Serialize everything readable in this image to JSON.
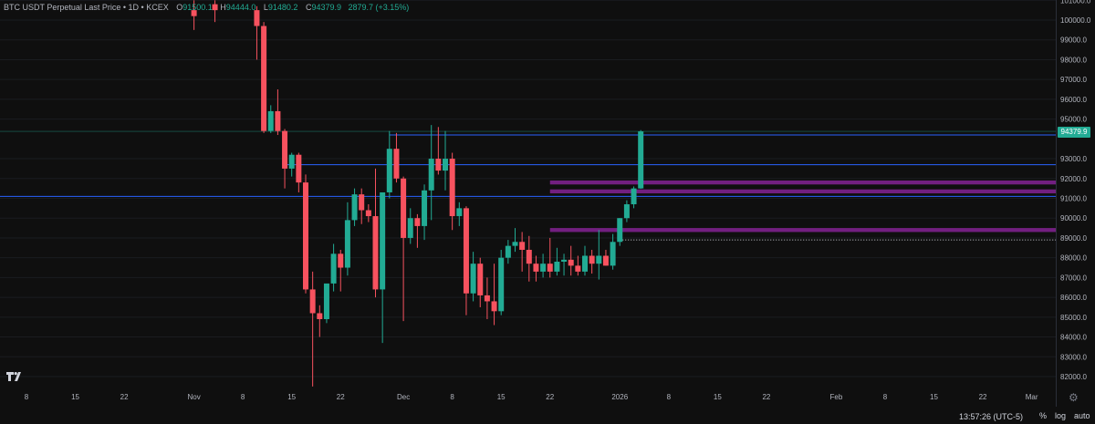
{
  "header": {
    "symbol": "BTC USDT Perpetual Last Price • 1D • KCEX",
    "o_label": "O",
    "o_value": "91500.1",
    "h_label": "H",
    "h_value": "94444.0",
    "l_label": "L",
    "l_value": "91480.2",
    "c_label": "C",
    "c_value": "94379.9",
    "change": "2879.7 (+3.15%)"
  },
  "last_price_tag": "94379.9",
  "footer": {
    "clock": "13:57:26 (UTC-5)",
    "percent_label": "%",
    "log_label": "log",
    "auto_label": "auto"
  },
  "colors": {
    "background": "#0f0f0f",
    "up": "#22ab94",
    "down": "#f7525f",
    "level_line": "#2962ff",
    "zone": "#9c27b0",
    "grid": "#1a1c20",
    "text": "#b2b5be"
  },
  "chart_data": {
    "type": "candlestick",
    "title": "BTC USDT Perpetual Last Price • 1D • KCEX",
    "y_axis": {
      "range": [
        81500,
        100500
      ],
      "ticks": [
        "101000.0",
        "100000.0",
        "99000.0",
        "98000.0",
        "97000.0",
        "96000.0",
        "95000.0",
        "93000.0",
        "92000.0",
        "91000.0",
        "90000.0",
        "89000.0",
        "88000.0",
        "87000.0",
        "86000.0",
        "85000.0",
        "84000.0",
        "83000.0",
        "82000.0"
      ]
    },
    "x_axis": {
      "ticks": [
        "8",
        "15",
        "22",
        "Nov",
        "8",
        "15",
        "22",
        "Dec",
        "8",
        "15",
        "22",
        "2026",
        "8",
        "15",
        "22",
        "Feb",
        "8",
        "15",
        "22",
        "Mar"
      ]
    },
    "candles": [
      {
        "date": "2025-11-01",
        "o": 100500,
        "h": 101000,
        "l": 99500,
        "c": 100200
      },
      {
        "date": "2025-11-04",
        "o": 100800,
        "h": 101000,
        "l": 99900,
        "c": 100500
      },
      {
        "date": "2025-11-10",
        "o": 100500,
        "h": 100700,
        "l": 98000,
        "c": 99700
      },
      {
        "date": "2025-11-11",
        "o": 99700,
        "h": 99900,
        "l": 94300,
        "c": 94400
      },
      {
        "date": "2025-11-12",
        "o": 94400,
        "h": 95700,
        "l": 94300,
        "c": 95400
      },
      {
        "date": "2025-11-13",
        "o": 95400,
        "h": 96500,
        "l": 94200,
        "c": 94400
      },
      {
        "date": "2025-11-14",
        "o": 94400,
        "h": 94500,
        "l": 91500,
        "c": 92500
      },
      {
        "date": "2025-11-15",
        "o": 92500,
        "h": 93300,
        "l": 92100,
        "c": 93200
      },
      {
        "date": "2025-11-16",
        "o": 93200,
        "h": 93300,
        "l": 91300,
        "c": 91800
      },
      {
        "date": "2025-11-17",
        "o": 91800,
        "h": 92200,
        "l": 86200,
        "c": 86400
      },
      {
        "date": "2025-11-18",
        "o": 86400,
        "h": 87300,
        "l": 81500,
        "c": 85200
      },
      {
        "date": "2025-11-19",
        "o": 85200,
        "h": 85600,
        "l": 84000,
        "c": 84900
      },
      {
        "date": "2025-11-20",
        "o": 84900,
        "h": 86600,
        "l": 84700,
        "c": 86700
      },
      {
        "date": "2025-11-21",
        "o": 86700,
        "h": 88700,
        "l": 86300,
        "c": 88200
      },
      {
        "date": "2025-11-22",
        "o": 88200,
        "h": 88400,
        "l": 86300,
        "c": 87500
      },
      {
        "date": "2025-11-23",
        "o": 87500,
        "h": 90800,
        "l": 87100,
        "c": 89900
      },
      {
        "date": "2025-11-24",
        "o": 89900,
        "h": 91500,
        "l": 89600,
        "c": 91200
      },
      {
        "date": "2025-11-25",
        "o": 91200,
        "h": 91500,
        "l": 89700,
        "c": 90400
      },
      {
        "date": "2025-11-26",
        "o": 90400,
        "h": 90700,
        "l": 89800,
        "c": 90100
      },
      {
        "date": "2025-11-27",
        "o": 90100,
        "h": 92500,
        "l": 86000,
        "c": 86400
      },
      {
        "date": "2025-11-28",
        "o": 86400,
        "h": 91300,
        "l": 83700,
        "c": 91300
      },
      {
        "date": "2025-11-29",
        "o": 91300,
        "h": 94400,
        "l": 91000,
        "c": 93500
      },
      {
        "date": "2025-11-30",
        "o": 93500,
        "h": 94300,
        "l": 91800,
        "c": 92000
      },
      {
        "date": "2025-12-01",
        "o": 92000,
        "h": 92100,
        "l": 84800,
        "c": 89000
      },
      {
        "date": "2025-12-02",
        "o": 89000,
        "h": 90500,
        "l": 88700,
        "c": 90000
      },
      {
        "date": "2025-12-03",
        "o": 90000,
        "h": 90200,
        "l": 88500,
        "c": 89600
      },
      {
        "date": "2025-12-04",
        "o": 89600,
        "h": 91700,
        "l": 88900,
        "c": 91400
      },
      {
        "date": "2025-12-05",
        "o": 91400,
        "h": 94700,
        "l": 89900,
        "c": 93000
      },
      {
        "date": "2025-12-06",
        "o": 93000,
        "h": 94600,
        "l": 92200,
        "c": 92400
      },
      {
        "date": "2025-12-07",
        "o": 92400,
        "h": 94400,
        "l": 91400,
        "c": 93000
      },
      {
        "date": "2025-12-08",
        "o": 93000,
        "h": 93300,
        "l": 89400,
        "c": 90100
      },
      {
        "date": "2025-12-09",
        "o": 90100,
        "h": 90800,
        "l": 89600,
        "c": 90500
      },
      {
        "date": "2025-12-10",
        "o": 90500,
        "h": 90600,
        "l": 85100,
        "c": 86200
      },
      {
        "date": "2025-12-11",
        "o": 86200,
        "h": 88300,
        "l": 85800,
        "c": 87700
      },
      {
        "date": "2025-12-12",
        "o": 87700,
        "h": 88000,
        "l": 85500,
        "c": 86100
      },
      {
        "date": "2025-12-13",
        "o": 86100,
        "h": 87000,
        "l": 84900,
        "c": 85800
      },
      {
        "date": "2025-12-14",
        "o": 85800,
        "h": 87700,
        "l": 84600,
        "c": 85300
      },
      {
        "date": "2025-12-15",
        "o": 85300,
        "h": 88400,
        "l": 85100,
        "c": 88000
      },
      {
        "date": "2025-12-16",
        "o": 88000,
        "h": 88900,
        "l": 87700,
        "c": 88600
      },
      {
        "date": "2025-12-17",
        "o": 88600,
        "h": 89500,
        "l": 88300,
        "c": 88800
      },
      {
        "date": "2025-12-18",
        "o": 88800,
        "h": 89300,
        "l": 87300,
        "c": 88400
      },
      {
        "date": "2025-12-19",
        "o": 88400,
        "h": 89100,
        "l": 86800,
        "c": 87700
      },
      {
        "date": "2025-12-20",
        "o": 87700,
        "h": 88100,
        "l": 86800,
        "c": 87300
      },
      {
        "date": "2025-12-21",
        "o": 87300,
        "h": 88200,
        "l": 87000,
        "c": 87700
      },
      {
        "date": "2025-12-22",
        "o": 87700,
        "h": 89000,
        "l": 87000,
        "c": 87300
      },
      {
        "date": "2025-12-23",
        "o": 87300,
        "h": 88500,
        "l": 87100,
        "c": 87800
      },
      {
        "date": "2025-12-24",
        "o": 87800,
        "h": 88200,
        "l": 87100,
        "c": 87900
      },
      {
        "date": "2025-12-25",
        "o": 87900,
        "h": 88600,
        "l": 87100,
        "c": 87600
      },
      {
        "date": "2025-12-26",
        "o": 87600,
        "h": 88100,
        "l": 87100,
        "c": 87300
      },
      {
        "date": "2025-12-27",
        "o": 87300,
        "h": 88600,
        "l": 87100,
        "c": 88100
      },
      {
        "date": "2025-12-28",
        "o": 88100,
        "h": 88400,
        "l": 87200,
        "c": 87700
      },
      {
        "date": "2025-12-29",
        "o": 87700,
        "h": 89400,
        "l": 86900,
        "c": 88100
      },
      {
        "date": "2025-12-30",
        "o": 88100,
        "h": 88400,
        "l": 87600,
        "c": 87600
      },
      {
        "date": "2025-12-31",
        "o": 87600,
        "h": 89200,
        "l": 87400,
        "c": 88800
      },
      {
        "date": "2026-01-01",
        "o": 88800,
        "h": 90000,
        "l": 88600,
        "c": 90000
      },
      {
        "date": "2026-01-02",
        "o": 90000,
        "h": 90900,
        "l": 89800,
        "c": 90700
      },
      {
        "date": "2026-01-03",
        "o": 90700,
        "h": 91600,
        "l": 90500,
        "c": 91500
      },
      {
        "date": "2026-01-04",
        "o": 91500,
        "h": 94444,
        "l": 91480,
        "c": 94380
      }
    ],
    "horizontal_levels": [
      94200,
      92700,
      91100
    ],
    "zones": [
      {
        "from": 91700,
        "to": 91900
      },
      {
        "from": 91250,
        "to": 91450
      },
      {
        "from": 89300,
        "to": 89500
      }
    ],
    "dotted_level": 88900,
    "last_price": 94379.9
  }
}
